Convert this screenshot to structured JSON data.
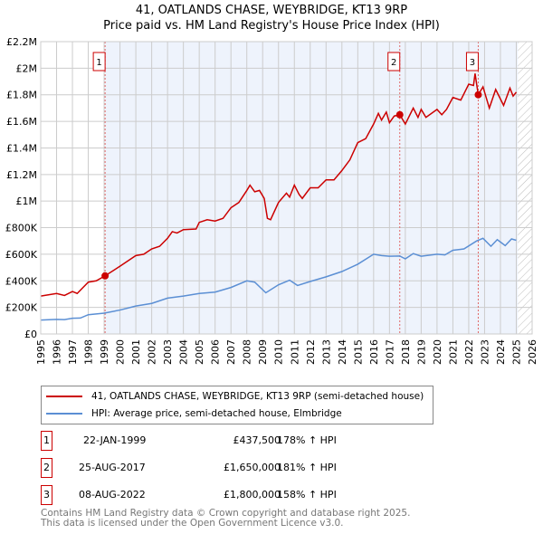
{
  "header": {
    "line1": "41, OATLANDS CHASE, WEYBRIDGE, KT13 9RP",
    "line2": "Price paid vs. HM Land Registry's House Price Index (HPI)"
  },
  "chart_data": {
    "type": "line",
    "title": "41, OATLANDS CHASE, WEYBRIDGE, KT13 9RP — Price paid vs. HM Land Registry's House Price Index (HPI)",
    "xlim": [
      1995,
      2026
    ],
    "ylim": [
      0,
      2200000
    ],
    "x_ticks": [
      "1995",
      "1996",
      "1997",
      "1998",
      "1999",
      "2000",
      "2001",
      "2002",
      "2003",
      "2004",
      "2005",
      "2006",
      "2007",
      "2008",
      "2009",
      "2010",
      "2011",
      "2012",
      "2013",
      "2014",
      "2015",
      "2016",
      "2017",
      "2018",
      "2019",
      "2020",
      "2021",
      "2022",
      "2023",
      "2024",
      "2025",
      "2026"
    ],
    "y_ticks": [
      {
        "v": 0,
        "label": "£0"
      },
      {
        "v": 200000,
        "label": "£200K"
      },
      {
        "v": 400000,
        "label": "£400K"
      },
      {
        "v": 600000,
        "label": "£600K"
      },
      {
        "v": 800000,
        "label": "£800K"
      },
      {
        "v": 1000000,
        "label": "£1M"
      },
      {
        "v": 1200000,
        "label": "£1.2M"
      },
      {
        "v": 1400000,
        "label": "£1.4M"
      },
      {
        "v": 1600000,
        "label": "£1.6M"
      },
      {
        "v": 1800000,
        "label": "£1.8M"
      },
      {
        "v": 2000000,
        "label": "£2M"
      },
      {
        "v": 2200000,
        "label": "£2.2M"
      }
    ],
    "grid": true,
    "colors": {
      "property": "#cc0000",
      "hpi": "#5b8fd4",
      "shade": "#eef3fc"
    },
    "series": [
      {
        "name": "41, OATLANDS CHASE, WEYBRIDGE, KT13 9RP (semi-detached house)",
        "points": [
          [
            1995,
            285
          ],
          [
            1996,
            305
          ],
          [
            1996.5,
            290
          ],
          [
            1997,
            320
          ],
          [
            1997.3,
            305
          ],
          [
            1998,
            390
          ],
          [
            1998.5,
            400
          ],
          [
            1999.06,
            437.5
          ],
          [
            2000,
            510
          ],
          [
            2001,
            590
          ],
          [
            2001.5,
            600
          ],
          [
            2002,
            640
          ],
          [
            2002.5,
            660
          ],
          [
            2003,
            720
          ],
          [
            2003.3,
            770
          ],
          [
            2003.6,
            760
          ],
          [
            2004,
            785
          ],
          [
            2004.8,
            790
          ],
          [
            2005,
            840
          ],
          [
            2005.5,
            860
          ],
          [
            2006,
            850
          ],
          [
            2006.5,
            870
          ],
          [
            2007,
            950
          ],
          [
            2007.5,
            990
          ],
          [
            2008,
            1080
          ],
          [
            2008.2,
            1120
          ],
          [
            2008.5,
            1070
          ],
          [
            2008.8,
            1080
          ],
          [
            2009.1,
            1020
          ],
          [
            2009.3,
            870
          ],
          [
            2009.5,
            860
          ],
          [
            2010,
            990
          ],
          [
            2010.5,
            1060
          ],
          [
            2010.7,
            1030
          ],
          [
            2011,
            1120
          ],
          [
            2011.3,
            1050
          ],
          [
            2011.5,
            1020
          ],
          [
            2012,
            1100
          ],
          [
            2012.5,
            1100
          ],
          [
            2013,
            1160
          ],
          [
            2013.5,
            1160
          ],
          [
            2014,
            1230
          ],
          [
            2014.5,
            1310
          ],
          [
            2015,
            1440
          ],
          [
            2015.5,
            1470
          ],
          [
            2016,
            1580
          ],
          [
            2016.3,
            1660
          ],
          [
            2016.5,
            1610
          ],
          [
            2016.8,
            1670
          ],
          [
            2017,
            1590
          ],
          [
            2017.3,
            1640
          ],
          [
            2017.65,
            1650
          ],
          [
            2018,
            1580
          ],
          [
            2018.5,
            1700
          ],
          [
            2018.8,
            1630
          ],
          [
            2019,
            1690
          ],
          [
            2019.3,
            1630
          ],
          [
            2020,
            1690
          ],
          [
            2020.3,
            1650
          ],
          [
            2020.6,
            1690
          ],
          [
            2021,
            1780
          ],
          [
            2021.5,
            1760
          ],
          [
            2022,
            1880
          ],
          [
            2022.3,
            1870
          ],
          [
            2022.4,
            1960
          ],
          [
            2022.6,
            1800
          ],
          [
            2022.9,
            1860
          ],
          [
            2023.3,
            1700
          ],
          [
            2023.7,
            1840
          ],
          [
            2024.2,
            1720
          ],
          [
            2024.6,
            1850
          ],
          [
            2024.8,
            1790
          ],
          [
            2025,
            1820
          ]
        ]
      },
      {
        "name": "HPI: Average price, semi-detached house, Elmbridge",
        "points": [
          [
            1995,
            105
          ],
          [
            1996,
            110
          ],
          [
            1996.5,
            108
          ],
          [
            1997,
            118
          ],
          [
            1997.5,
            120
          ],
          [
            1998,
            145
          ],
          [
            1999,
            157
          ],
          [
            2000,
            180
          ],
          [
            2001,
            210
          ],
          [
            2002,
            230
          ],
          [
            2003,
            270
          ],
          [
            2004,
            285
          ],
          [
            2005,
            305
          ],
          [
            2006,
            315
          ],
          [
            2007,
            350
          ],
          [
            2008,
            400
          ],
          [
            2008.5,
            390
          ],
          [
            2009.2,
            310
          ],
          [
            2010,
            370
          ],
          [
            2010.7,
            405
          ],
          [
            2011.2,
            365
          ],
          [
            2012,
            395
          ],
          [
            2013,
            430
          ],
          [
            2014,
            470
          ],
          [
            2015,
            525
          ],
          [
            2016,
            600
          ],
          [
            2016.5,
            590
          ],
          [
            2017,
            585
          ],
          [
            2017.65,
            587
          ],
          [
            2018,
            565
          ],
          [
            2018.5,
            605
          ],
          [
            2019,
            585
          ],
          [
            2020,
            600
          ],
          [
            2020.5,
            595
          ],
          [
            2021,
            630
          ],
          [
            2021.7,
            640
          ],
          [
            2022.5,
            700
          ],
          [
            2022.9,
            720
          ],
          [
            2023.4,
            660
          ],
          [
            2023.8,
            710
          ],
          [
            2024.3,
            665
          ],
          [
            2024.7,
            715
          ],
          [
            2025,
            705
          ]
        ]
      }
    ],
    "units_note": "series point values in £K",
    "sales": [
      {
        "n": "1",
        "x": 1999.06,
        "y": 437.5,
        "date": "22-JAN-1999",
        "price": "£437,500",
        "hpi": "178% ↑ HPI"
      },
      {
        "n": "2",
        "x": 2017.65,
        "y": 1650,
        "date": "25-AUG-2017",
        "price": "£1,650,000",
        "hpi": "181% ↑ HPI"
      },
      {
        "n": "3",
        "x": 2022.6,
        "y": 1800,
        "date": "08-AUG-2022",
        "price": "£1,800,000",
        "hpi": "158% ↑ HPI"
      }
    ],
    "data_end": 2025.1
  },
  "legend": {
    "property": "41, OATLANDS CHASE, WEYBRIDGE, KT13 9RP (semi-detached house)",
    "hpi": "HPI: Average price, semi-detached house, Elmbridge"
  },
  "footer": {
    "line1": "Contains HM Land Registry data © Crown copyright and database right 2025.",
    "line2": "This data is licensed under the Open Government Licence v3.0."
  }
}
